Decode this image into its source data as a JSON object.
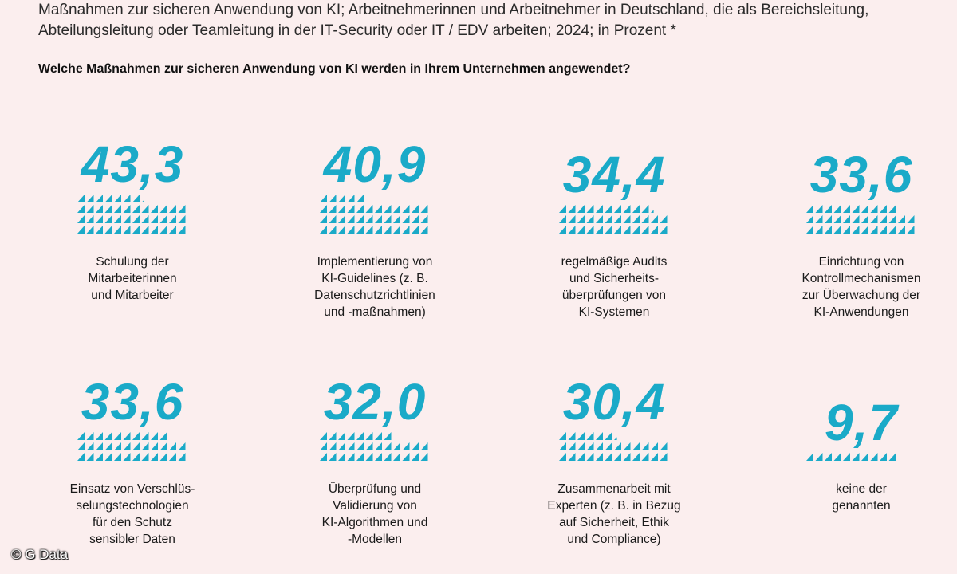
{
  "header": {
    "title": "Maßnahmen zur sicheren Anwendung von KI; Arbeitnehmerinnen und Arbeitnehmer in Deutschland, die als Bereichsleitung, Abteilungsleitung oder Teamleitung in der IT-Security oder IT / EDV arbeiten; 2024; in Prozent *",
    "question": "Welche Maßnahmen zur sicheren Anwendung von KI werden in Ihrem Unternehmen angewendet?"
  },
  "chart_data": {
    "type": "pictogram",
    "title": "Welche Maßnahmen zur sicheren Anwendung von KI werden in Ihrem Unternehmen angewendet?",
    "unit": "Prozent",
    "accent_color": "#1aaac8",
    "items": [
      {
        "value": 43.3,
        "display": "43,3",
        "label_lines": [
          "Schulung der",
          "Mitarbeiterinnen",
          "und Mitarbeiter"
        ]
      },
      {
        "value": 40.9,
        "display": "40,9",
        "label_lines": [
          "Implementierung von",
          "KI-Guidelines (z. B.",
          "Datenschutzrichtlinien",
          "und -maßnahmen)"
        ]
      },
      {
        "value": 34.4,
        "display": "34,4",
        "label_lines": [
          "regelmäßige Audits",
          "und Sicherheits-",
          "überprüfungen von",
          "KI-Systemen"
        ]
      },
      {
        "value": 33.6,
        "display": "33,6",
        "label_lines": [
          "Einrichtung von",
          "Kontrollmechanismen",
          "zur Überwachung der",
          "KI-Anwendungen"
        ]
      },
      {
        "value": 33.6,
        "display": "33,6",
        "label_lines": [
          "Einsatz von Verschlüs-",
          "selungstechnologien",
          "für den Schutz",
          "sensibler Daten"
        ]
      },
      {
        "value": 32.0,
        "display": "32,0",
        "label_lines": [
          "Überprüfung und",
          "Validierung von",
          "KI-Algorithmen und",
          "-Modellen"
        ]
      },
      {
        "value": 30.4,
        "display": "30,4",
        "label_lines": [
          "Zusammenarbeit mit",
          "Experten (z. B. in Bezug",
          "auf Sicherheit, Ethik",
          "und Compliance)"
        ]
      },
      {
        "value": 9.7,
        "display": "9,7",
        "label_lines": [
          "keine der",
          "genannten"
        ]
      }
    ]
  },
  "footer": {
    "copyright": "© G Data"
  }
}
